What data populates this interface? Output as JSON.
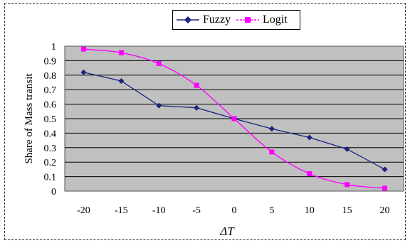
{
  "chart_data": {
    "type": "line",
    "title": "",
    "xlabel": "ΔT",
    "ylabel": "Share of Mass transit",
    "x": [
      -20,
      -15,
      -10,
      -5,
      0,
      5,
      10,
      15,
      20
    ],
    "ylim": [
      0,
      1
    ],
    "yticks": [
      "0",
      "0.1",
      "0.2",
      "0.3",
      "0.4",
      "0.5",
      "0.6",
      "0.7",
      "0.8",
      "0.9",
      "1"
    ],
    "xticks": [
      "-20",
      "-15",
      "-10",
      "-5",
      "0",
      "5",
      "10",
      "15",
      "20"
    ],
    "grid": true,
    "legend_position": "top",
    "series": [
      {
        "name": "Fuzzy",
        "color": "#1a237e",
        "marker": "diamond",
        "values": [
          0.82,
          0.76,
          0.59,
          0.575,
          0.5,
          0.43,
          0.37,
          0.29,
          0.15
        ]
      },
      {
        "name": "Logit",
        "color": "#ff00ff",
        "marker": "square",
        "values": [
          0.98,
          0.955,
          0.88,
          0.73,
          0.5,
          0.27,
          0.12,
          0.045,
          0.02
        ]
      }
    ],
    "plot_background": "#c0c0c0"
  }
}
